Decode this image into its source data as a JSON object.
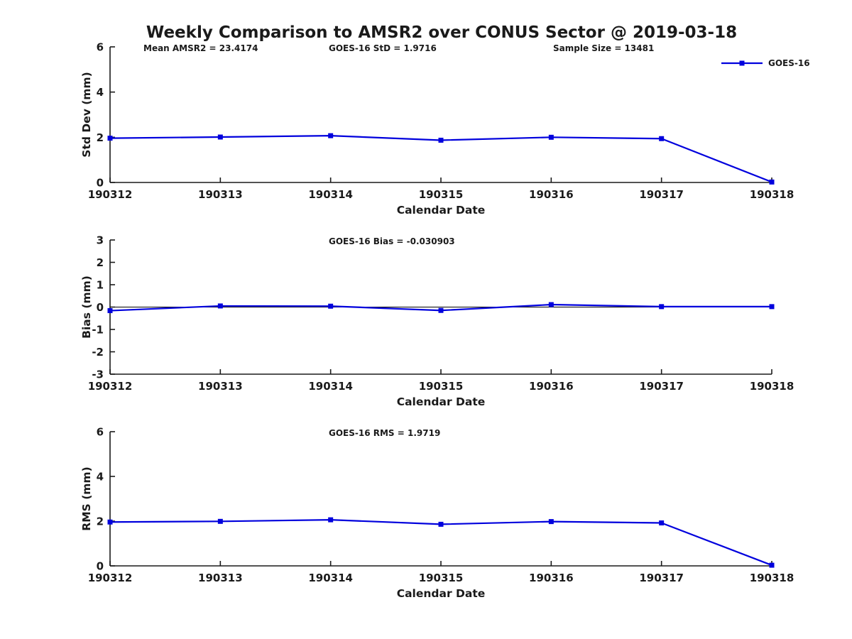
{
  "figure": {
    "title": "Weekly Comparison to AMSR2 over CONUS Sector @ 2019-03-18",
    "colors": {
      "line": "#0000DD",
      "axis": "#1a1a1a",
      "zero_line": "#000000"
    },
    "legend": {
      "label": "GOES-16"
    }
  },
  "chart_data": [
    {
      "type": "line",
      "id": "stddev",
      "ylabel": "Std Dev (mm)",
      "xlabel": "Calendar Date",
      "categories": [
        "190312",
        "190313",
        "190314",
        "190315",
        "190316",
        "190317",
        "190318"
      ],
      "series": [
        {
          "name": "GOES-16",
          "values": [
            1.96,
            2.01,
            2.07,
            1.87,
            2.0,
            1.94,
            0.02
          ]
        }
      ],
      "ylim": [
        0,
        6
      ],
      "yticks": [
        0,
        2,
        4,
        6
      ],
      "grid": false,
      "legend_position": "top-right",
      "annotations": [
        "Mean AMSR2 = 23.4174",
        "GOES-16 StD = 1.9716",
        "Sample Size = 13481"
      ]
    },
    {
      "type": "line",
      "id": "bias",
      "ylabel": "Bias (mm)",
      "xlabel": "Calendar Date",
      "categories": [
        "190312",
        "190313",
        "190314",
        "190315",
        "190316",
        "190317",
        "190318"
      ],
      "series": [
        {
          "name": "GOES-16",
          "values": [
            -0.16,
            0.05,
            0.04,
            -0.15,
            0.11,
            0.02,
            0.02
          ]
        }
      ],
      "ylim": [
        -3,
        3
      ],
      "yticks": [
        -3,
        -2,
        -1,
        0,
        1,
        2,
        3
      ],
      "zero_line": true,
      "grid": false,
      "annotations": [
        "GOES-16 Bias  = -0.030903"
      ]
    },
    {
      "type": "line",
      "id": "rms",
      "ylabel": "RMS (mm)",
      "xlabel": "Calendar Date",
      "categories": [
        "190312",
        "190313",
        "190314",
        "190315",
        "190316",
        "190317",
        "190318"
      ],
      "series": [
        {
          "name": "GOES-16",
          "values": [
            1.96,
            1.99,
            2.06,
            1.86,
            1.98,
            1.92,
            0.03
          ]
        }
      ],
      "ylim": [
        0,
        6
      ],
      "yticks": [
        0,
        2,
        4,
        6
      ],
      "grid": false,
      "annotations": [
        "GOES-16 RMS = 1.9719"
      ]
    }
  ]
}
